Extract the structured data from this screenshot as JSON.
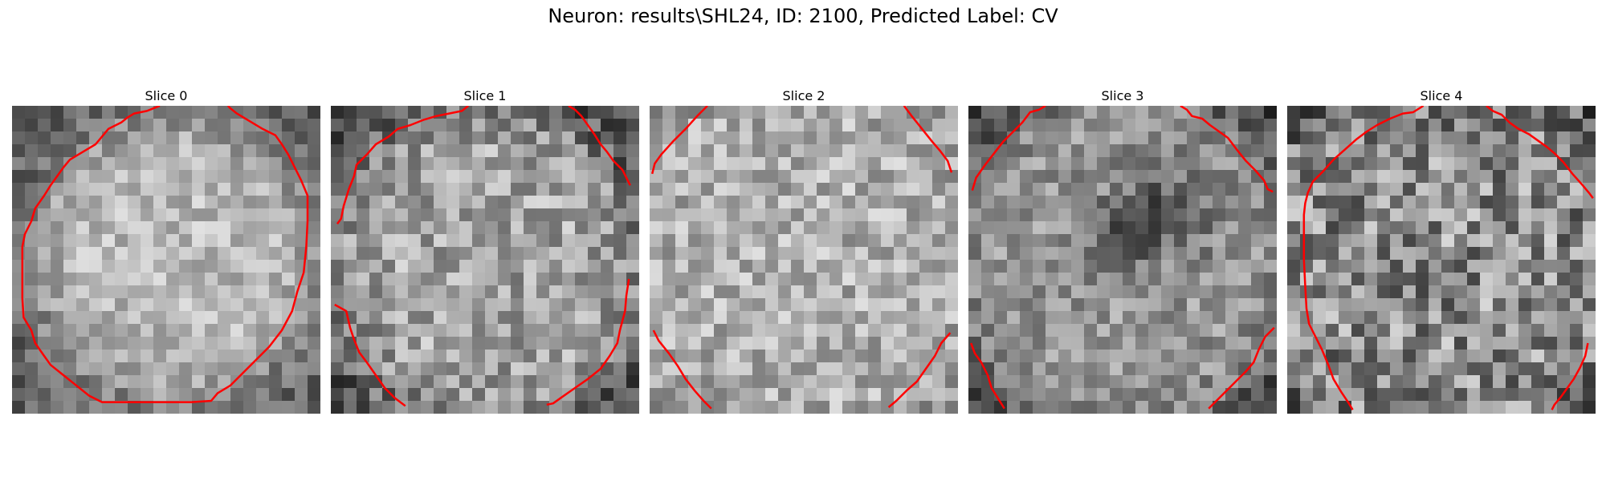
{
  "figure": {
    "title": "Neuron: results\\SHL24, ID: 2100, Predicted Label: CV"
  },
  "panels": [
    {
      "title": "Slice 0"
    },
    {
      "title": "Slice 1"
    },
    {
      "title": "Slice 2"
    },
    {
      "title": "Slice 3"
    },
    {
      "title": "Slice 4"
    }
  ],
  "style": {
    "contour_color": "#ff0000",
    "colormap": "grayscale"
  }
}
